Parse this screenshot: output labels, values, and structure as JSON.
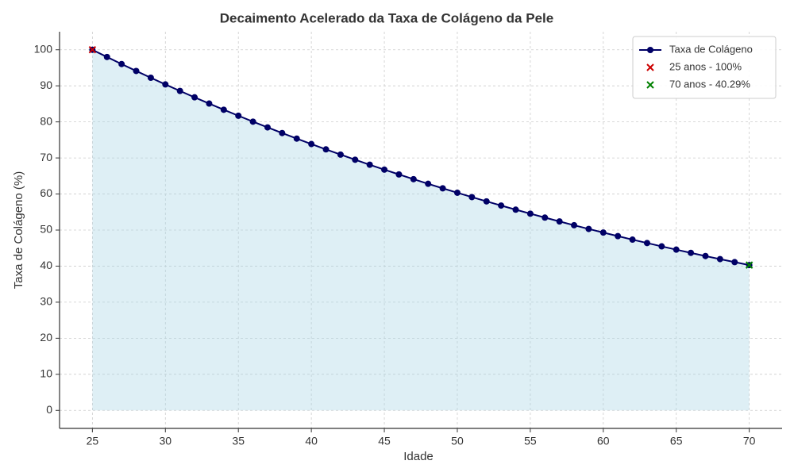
{
  "chart_data": {
    "type": "line",
    "title": "Decaimento Acelerado da Taxa de Colágeno da Pele",
    "xlabel": "Idade",
    "ylabel": "Taxa de Colágeno (%)",
    "x": [
      25,
      26,
      27,
      28,
      29,
      30,
      31,
      32,
      33,
      34,
      35,
      36,
      37,
      38,
      39,
      40,
      41,
      42,
      43,
      44,
      45,
      46,
      47,
      48,
      49,
      50,
      51,
      52,
      53,
      54,
      55,
      56,
      57,
      58,
      59,
      60,
      61,
      62,
      63,
      64,
      65,
      66,
      67,
      68,
      69,
      70
    ],
    "series": [
      {
        "name": "Taxa de Colágeno",
        "color": "#000066",
        "fill": "#add8e6",
        "values": [
          100,
          98,
          96.04,
          94.12,
          92.24,
          90.39,
          88.58,
          86.81,
          85.08,
          83.37,
          81.71,
          80.07,
          78.47,
          76.9,
          75.36,
          73.86,
          72.38,
          70.93,
          69.51,
          68.12,
          66.76,
          65.43,
          64.12,
          62.83,
          61.58,
          60.35,
          59.14,
          57.96,
          56.8,
          55.66,
          54.55,
          53.46,
          52.39,
          51.34,
          50.31,
          49.31,
          48.32,
          47.35,
          46.41,
          45.48,
          44.57,
          43.68,
          42.8,
          41.95,
          41.11,
          40.29
        ]
      }
    ],
    "highlights": [
      {
        "name": "25 anos - 100%",
        "color": "#cc0000",
        "x": 25,
        "y": 100
      },
      {
        "name": "70 anos - 40.29%",
        "color": "#008000",
        "x": 70,
        "y": 40.29
      }
    ],
    "xlim": [
      22.75,
      72.25
    ],
    "ylim": [
      -5,
      105
    ],
    "xticks": [
      25,
      30,
      35,
      40,
      45,
      50,
      55,
      60,
      65,
      70
    ],
    "yticks": [
      0,
      10,
      20,
      30,
      40,
      50,
      60,
      70,
      80,
      90,
      100
    ],
    "grid": true,
    "legend": "upper right"
  }
}
